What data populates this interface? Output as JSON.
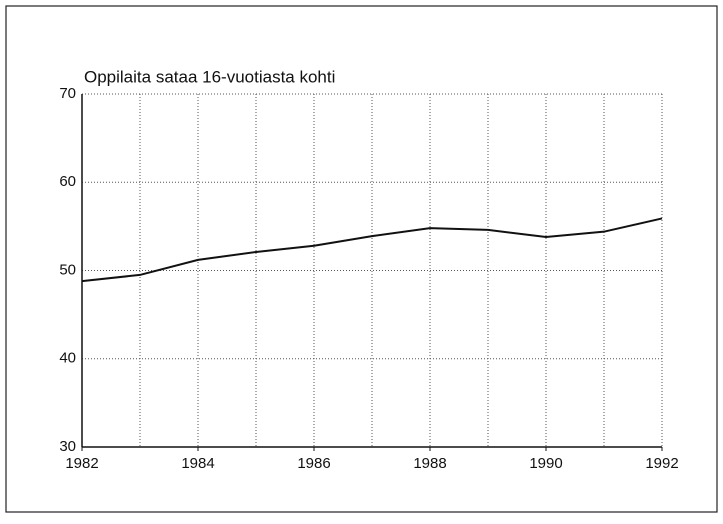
{
  "chart_data": {
    "type": "line",
    "title": "Oppilaita sataa 16-vuotiasta kohti",
    "x": [
      1982,
      1983,
      1984,
      1985,
      1986,
      1987,
      1988,
      1989,
      1990,
      1991,
      1992
    ],
    "series": [
      {
        "name": "Oppilaita",
        "color": "#111111",
        "values": [
          48.8,
          49.5,
          51.2,
          52.1,
          52.8,
          53.9,
          54.8,
          54.6,
          53.8,
          54.4,
          55.9
        ]
      }
    ],
    "xlim": [
      1982,
      1992
    ],
    "xticks": [
      1982,
      1984,
      1986,
      1988,
      1990,
      1992
    ],
    "ylim": [
      30,
      70
    ],
    "yticks": [
      30,
      40,
      50,
      60,
      70
    ],
    "grid": true
  }
}
